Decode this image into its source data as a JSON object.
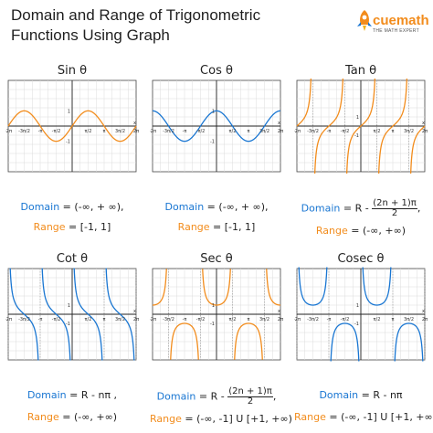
{
  "header": {
    "title_line1": "Domain and Range of Trigonometric",
    "title_line2": "Functions Using Graph"
  },
  "logo": {
    "brand": "cuemath",
    "tagline": "THE MATH EXPERT"
  },
  "colors": {
    "orange": "#f28c1c",
    "blue": "#1976d2",
    "grid": "#dcdcdc",
    "axis": "#222222"
  },
  "panels": [
    {
      "title": "Sin θ",
      "fn": "sin",
      "color": "#f28c1c",
      "domain_label": "Domain",
      "domain_value": " = (-∞, + ∞),",
      "range_label": "Range",
      "range_value": " = [-1, 1]"
    },
    {
      "title": "Cos θ",
      "fn": "cos",
      "color": "#1976d2",
      "domain_label": "Domain",
      "domain_value": " = (-∞, + ∞),",
      "range_label": "Range",
      "range_value": " = [-1, 1]"
    },
    {
      "title": "Tan θ",
      "fn": "tan",
      "color": "#f28c1c",
      "domain_label": "Domain",
      "domain_prefix": " = R -",
      "domain_frac_num": "(2n + 1)π",
      "domain_frac_suffix": ",",
      "domain_frac_den": "2",
      "range_label": "Range",
      "range_value": " = (-∞, +∞)"
    },
    {
      "title": "Cot θ",
      "fn": "cot",
      "color": "#1976d2",
      "domain_label": "Domain",
      "domain_value": " = R - nπ ,",
      "range_label": "Range",
      "range_value": " = (-∞, +∞)"
    },
    {
      "title": "Sec θ",
      "fn": "sec",
      "color": "#f28c1c",
      "domain_label": "Domain",
      "domain_prefix": " = R -",
      "domain_frac_num": "(2n + 1)π",
      "domain_frac_suffix": ",",
      "domain_frac_den": "2",
      "range_label": "Range",
      "range_value": " = (-∞, -1] U [+1, +∞)"
    },
    {
      "title": "Cosec θ",
      "fn": "csc",
      "color": "#1976d2",
      "domain_label": "Domain",
      "domain_value": " = R - nπ",
      "range_label": "Range",
      "range_value": " = (-∞, -1] U [+1, +∞)"
    }
  ],
  "x_ticks": [
    "-2π",
    "-3π/2",
    "-π",
    "-π/2",
    "π/2",
    "π",
    "3π/2",
    "2π"
  ],
  "y_ticks": [
    "1",
    "-1"
  ],
  "axis_x_label": "x",
  "axis_y_label": "y"
}
